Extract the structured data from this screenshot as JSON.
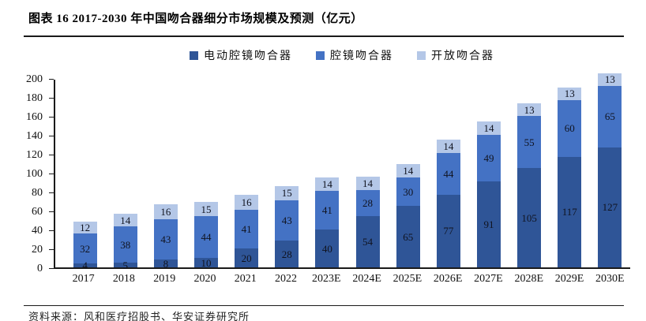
{
  "title": "图表 16 2017-2030 年中国吻合器细分市场规模及预测（亿元）",
  "source": "资料来源：风和医疗招股书、华安证券研究所",
  "chart_data": {
    "type": "bar",
    "stacked": true,
    "title": "图表 16 2017-2030 年中国吻合器细分市场规模及预测（亿元）",
    "categories": [
      "2017",
      "2018",
      "2019",
      "2020",
      "2021",
      "2022",
      "2023E",
      "2024E",
      "2025E",
      "2026E",
      "2027E",
      "2028E",
      "2029E",
      "2030E"
    ],
    "series": [
      {
        "name": "电动腔镜吻合器",
        "color": "#2F5597",
        "values": [
          4,
          5,
          8,
          10,
          20,
          28,
          40,
          54,
          65,
          77,
          91,
          105,
          117,
          127
        ]
      },
      {
        "name": "腔镜吻合器",
        "color": "#4472C4",
        "values": [
          32,
          38,
          43,
          44,
          41,
          43,
          41,
          28,
          30,
          44,
          49,
          55,
          60,
          65
        ]
      },
      {
        "name": "开放吻合器",
        "color": "#B4C7E7",
        "values": [
          12,
          14,
          16,
          15,
          16,
          15,
          14,
          14,
          14,
          14,
          14,
          13,
          13,
          13
        ]
      }
    ],
    "xlabel": "",
    "ylabel": "",
    "ylim": [
      0,
      200
    ],
    "ytick_step": 20,
    "grid": false,
    "legend_position": "top",
    "data_labels": true,
    "axis_color": "#1a1a1a"
  }
}
